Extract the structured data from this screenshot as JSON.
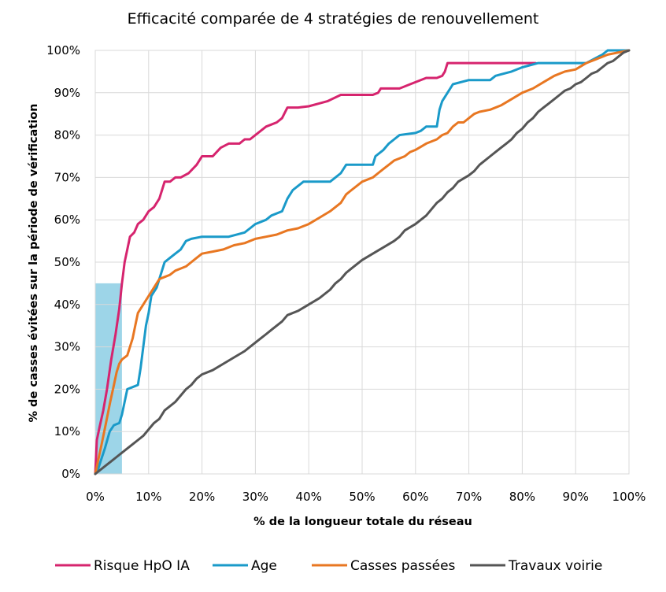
{
  "chart_data": {
    "type": "line",
    "title": "Efficacité comparée de 4 stratégies de renouvellement",
    "xlabel": "% de la longueur totale du réseau",
    "ylabel": "% de casses évitées sur la période de vérification",
    "xlim": [
      0,
      100
    ],
    "ylim": [
      0,
      100
    ],
    "x_ticks": [
      "0%",
      "10%",
      "20%",
      "30%",
      "40%",
      "50%",
      "60%",
      "70%",
      "80%",
      "90%",
      "100%"
    ],
    "y_ticks": [
      "0%",
      "10%",
      "20%",
      "30%",
      "40%",
      "50%",
      "60%",
      "70%",
      "80%",
      "90%",
      "100%"
    ],
    "grid": true,
    "legend_position": "bottom",
    "highlight_region": {
      "x": [
        0,
        5
      ],
      "y": [
        0,
        45
      ],
      "color": "#92d0e6"
    },
    "series": [
      {
        "name": "Risque HpO IA",
        "color": "#d6246e",
        "points": [
          [
            0,
            0
          ],
          [
            0.3,
            8
          ],
          [
            0.8,
            11
          ],
          [
            1.5,
            15
          ],
          [
            2.2,
            20
          ],
          [
            3,
            27
          ],
          [
            3.8,
            33
          ],
          [
            4.5,
            39
          ],
          [
            5,
            45
          ],
          [
            5.2,
            47
          ],
          [
            5.5,
            50
          ],
          [
            6,
            53
          ],
          [
            6.5,
            56
          ],
          [
            7.3,
            57
          ],
          [
            8,
            59
          ],
          [
            9,
            60
          ],
          [
            10,
            62
          ],
          [
            11,
            63
          ],
          [
            12,
            65
          ],
          [
            12.5,
            67
          ],
          [
            13,
            69
          ],
          [
            14,
            69
          ],
          [
            15,
            70
          ],
          [
            16,
            70
          ],
          [
            17.5,
            71
          ],
          [
            19,
            73
          ],
          [
            20,
            75
          ],
          [
            22,
            75
          ],
          [
            23.5,
            77
          ],
          [
            25,
            78
          ],
          [
            27,
            78
          ],
          [
            28,
            79
          ],
          [
            29,
            79
          ],
          [
            30,
            80
          ],
          [
            31,
            81
          ],
          [
            32,
            82
          ],
          [
            33,
            82.5
          ],
          [
            34,
            83
          ],
          [
            35,
            84
          ],
          [
            36,
            86.5
          ],
          [
            38,
            86.5
          ],
          [
            40,
            86.8
          ],
          [
            42,
            87.5
          ],
          [
            43.5,
            88
          ],
          [
            46,
            89.5
          ],
          [
            52,
            89.5
          ],
          [
            53,
            90
          ],
          [
            53.5,
            91
          ],
          [
            57,
            91
          ],
          [
            59,
            92
          ],
          [
            62,
            93.5
          ],
          [
            64,
            93.5
          ],
          [
            65,
            94
          ],
          [
            65.5,
            95
          ],
          [
            66,
            97
          ],
          [
            74,
            97
          ],
          [
            82.5,
            97
          ]
        ]
      },
      {
        "name": "Age",
        "color": "#1a9ac9",
        "points": [
          [
            0,
            0
          ],
          [
            0.5,
            1
          ],
          [
            1,
            3
          ],
          [
            1.8,
            6
          ],
          [
            2.7,
            10
          ],
          [
            3.5,
            11.5
          ],
          [
            4.5,
            12
          ],
          [
            5,
            14
          ],
          [
            5.5,
            17
          ],
          [
            6,
            20
          ],
          [
            7,
            20.5
          ],
          [
            8,
            21
          ],
          [
            8.5,
            25
          ],
          [
            9,
            30
          ],
          [
            9.5,
            35
          ],
          [
            10,
            38
          ],
          [
            10.5,
            42
          ],
          [
            11.5,
            44
          ],
          [
            12,
            46
          ],
          [
            13,
            50
          ],
          [
            14,
            51
          ],
          [
            15,
            52
          ],
          [
            16,
            53
          ],
          [
            17,
            55
          ],
          [
            18,
            55.5
          ],
          [
            20,
            56
          ],
          [
            25,
            56
          ],
          [
            28,
            57
          ],
          [
            29,
            58
          ],
          [
            30,
            59
          ],
          [
            32,
            60
          ],
          [
            33,
            61
          ],
          [
            35,
            62
          ],
          [
            36,
            65
          ],
          [
            37,
            67
          ],
          [
            38,
            68
          ],
          [
            39,
            69
          ],
          [
            44,
            69
          ],
          [
            45,
            70
          ],
          [
            46,
            71
          ],
          [
            47,
            73
          ],
          [
            52,
            73
          ],
          [
            52.5,
            75
          ],
          [
            54,
            76.5
          ],
          [
            55,
            78
          ],
          [
            56,
            79
          ],
          [
            57,
            80
          ],
          [
            60,
            80.5
          ],
          [
            61,
            81
          ],
          [
            62,
            82
          ],
          [
            64,
            82
          ],
          [
            64.5,
            86
          ],
          [
            65,
            88
          ],
          [
            66,
            90
          ],
          [
            67,
            92
          ],
          [
            70,
            93
          ],
          [
            74,
            93
          ],
          [
            75,
            94
          ],
          [
            78,
            95
          ],
          [
            80,
            96
          ],
          [
            83,
            97
          ],
          [
            90,
            97
          ],
          [
            92,
            97
          ],
          [
            95,
            99
          ],
          [
            96,
            100
          ],
          [
            100,
            100
          ]
        ]
      },
      {
        "name": "Casses passées",
        "color": "#e87722",
        "points": [
          [
            0,
            0
          ],
          [
            0.5,
            3
          ],
          [
            1.2,
            7
          ],
          [
            2,
            12
          ],
          [
            2.8,
            17
          ],
          [
            3.5,
            21
          ],
          [
            4,
            24
          ],
          [
            4.5,
            26
          ],
          [
            5,
            27
          ],
          [
            6,
            28
          ],
          [
            6.5,
            30
          ],
          [
            7,
            32
          ],
          [
            7.5,
            35
          ],
          [
            8,
            38
          ],
          [
            9,
            40
          ],
          [
            10,
            42
          ],
          [
            11,
            44
          ],
          [
            12,
            46
          ],
          [
            13,
            46.5
          ],
          [
            14,
            47
          ],
          [
            15,
            48
          ],
          [
            16,
            48.5
          ],
          [
            17,
            49
          ],
          [
            18,
            50
          ],
          [
            19,
            51
          ],
          [
            20,
            52
          ],
          [
            22,
            52.5
          ],
          [
            24,
            53
          ],
          [
            26,
            54
          ],
          [
            28,
            54.5
          ],
          [
            30,
            55.5
          ],
          [
            32,
            56
          ],
          [
            34,
            56.5
          ],
          [
            36,
            57.5
          ],
          [
            38,
            58
          ],
          [
            40,
            59
          ],
          [
            42,
            60.5
          ],
          [
            44,
            62
          ],
          [
            45,
            63
          ],
          [
            46,
            64
          ],
          [
            47,
            66
          ],
          [
            48,
            67
          ],
          [
            49,
            68
          ],
          [
            50,
            69
          ],
          [
            52,
            70
          ],
          [
            53,
            71
          ],
          [
            54,
            72
          ],
          [
            55,
            73
          ],
          [
            56,
            74
          ],
          [
            58,
            75
          ],
          [
            59,
            76
          ],
          [
            60,
            76.5
          ],
          [
            62,
            78
          ],
          [
            64,
            79
          ],
          [
            65,
            80
          ],
          [
            66,
            80.5
          ],
          [
            67,
            82
          ],
          [
            68,
            83
          ],
          [
            69,
            83
          ],
          [
            70,
            84
          ],
          [
            71,
            85
          ],
          [
            72,
            85.5
          ],
          [
            74,
            86
          ],
          [
            76,
            87
          ],
          [
            78,
            88.5
          ],
          [
            80,
            90
          ],
          [
            82,
            91
          ],
          [
            84,
            92.5
          ],
          [
            86,
            94
          ],
          [
            88,
            95
          ],
          [
            90,
            95.5
          ],
          [
            92,
            97
          ],
          [
            94,
            98
          ],
          [
            96,
            99
          ],
          [
            98,
            99.5
          ],
          [
            100,
            100
          ]
        ]
      },
      {
        "name": "Travaux voirie",
        "color": "#555555",
        "points": [
          [
            0,
            0
          ],
          [
            1,
            1
          ],
          [
            2,
            2
          ],
          [
            3,
            3
          ],
          [
            4,
            4
          ],
          [
            5,
            5
          ],
          [
            6,
            6
          ],
          [
            7,
            7
          ],
          [
            8,
            8
          ],
          [
            9,
            9
          ],
          [
            10,
            10.5
          ],
          [
            11,
            12
          ],
          [
            12,
            13
          ],
          [
            13,
            15
          ],
          [
            14,
            16
          ],
          [
            15,
            17
          ],
          [
            16,
            18.5
          ],
          [
            17,
            20
          ],
          [
            18,
            21
          ],
          [
            19,
            22.5
          ],
          [
            20,
            23.5
          ],
          [
            22,
            24.5
          ],
          [
            24,
            26
          ],
          [
            26,
            27.5
          ],
          [
            28,
            29
          ],
          [
            29,
            30
          ],
          [
            30,
            31
          ],
          [
            31,
            32
          ],
          [
            32,
            33
          ],
          [
            33,
            34
          ],
          [
            34,
            35
          ],
          [
            35,
            36
          ],
          [
            36,
            37.5
          ],
          [
            38,
            38.5
          ],
          [
            40,
            40
          ],
          [
            42,
            41.5
          ],
          [
            44,
            43.5
          ],
          [
            45,
            45
          ],
          [
            46,
            46
          ],
          [
            47,
            47.5
          ],
          [
            48,
            48.5
          ],
          [
            50,
            50.5
          ],
          [
            52,
            52
          ],
          [
            54,
            53.5
          ],
          [
            56,
            55
          ],
          [
            57,
            56
          ],
          [
            58,
            57.5
          ],
          [
            60,
            59
          ],
          [
            62,
            61
          ],
          [
            63,
            62.5
          ],
          [
            64,
            64
          ],
          [
            65,
            65
          ],
          [
            66,
            66.5
          ],
          [
            67,
            67.5
          ],
          [
            68,
            69
          ],
          [
            70,
            70.5
          ],
          [
            71,
            71.5
          ],
          [
            72,
            73
          ],
          [
            73,
            74
          ],
          [
            74,
            75
          ],
          [
            75,
            76
          ],
          [
            76,
            77
          ],
          [
            77,
            78
          ],
          [
            78,
            79
          ],
          [
            79,
            80.5
          ],
          [
            80,
            81.5
          ],
          [
            81,
            83
          ],
          [
            82,
            84
          ],
          [
            83,
            85.5
          ],
          [
            84,
            86.5
          ],
          [
            85,
            87.5
          ],
          [
            86,
            88.5
          ],
          [
            87,
            89.5
          ],
          [
            88,
            90.5
          ],
          [
            89,
            91
          ],
          [
            90,
            92
          ],
          [
            91,
            92.5
          ],
          [
            92,
            93.5
          ],
          [
            93,
            94.5
          ],
          [
            94,
            95
          ],
          [
            95,
            96
          ],
          [
            96,
            97
          ],
          [
            97,
            97.5
          ],
          [
            98,
            98.5
          ],
          [
            99,
            99.5
          ],
          [
            100,
            100
          ]
        ]
      }
    ]
  }
}
